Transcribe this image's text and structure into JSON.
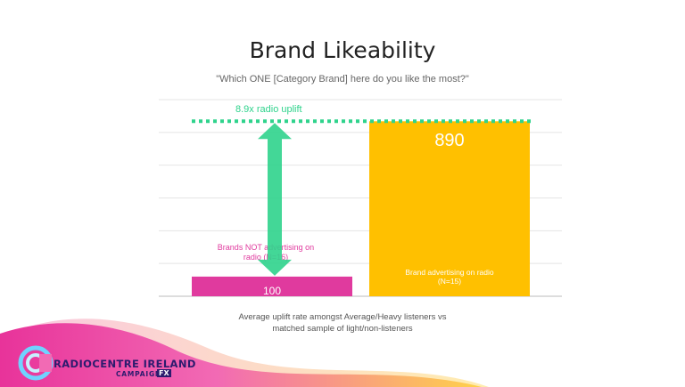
{
  "chart_data": {
    "type": "bar",
    "title": "Brand Likeability",
    "subtitle": "\"Which ONE [Category Brand] here do you like the most?\"",
    "categories": [
      "Brands NOT advertising on radio (N=16)",
      "Brand advertising on radio (N=15)"
    ],
    "values": [
      100,
      890
    ],
    "colors": [
      "#e03a9e",
      "#ffc000"
    ],
    "ylim": [
      0,
      1000
    ],
    "grid": true,
    "annotation": "8.9x radio uplift",
    "annotation_color": "#2fd38c"
  },
  "caption": {
    "line1": "Average uplift rate amongst Average/Heavy listeners vs",
    "line2": "matched sample of light/non-listeners"
  },
  "footer": {
    "brand_line1": "RADIOCENTRE IRELAND",
    "brand_line2": "CAMPAIGN",
    "brand_badge": "FX"
  }
}
